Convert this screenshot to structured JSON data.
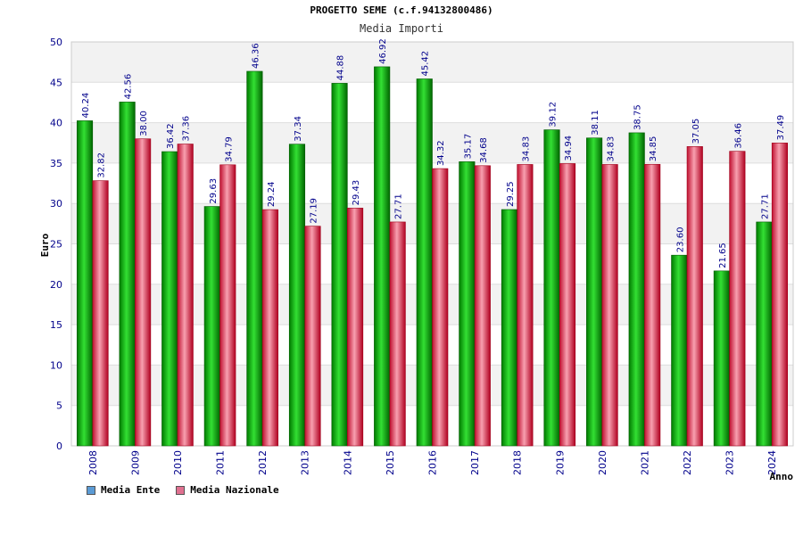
{
  "chart_data": {
    "type": "bar",
    "title": "PROGETTO SEME (c.f.94132800486)",
    "subtitle": "Media Importi",
    "xlabel": "Anno",
    "ylabel": "Euro",
    "ylim": [
      0,
      50
    ],
    "yticks": [
      0,
      5,
      10,
      15,
      20,
      25,
      30,
      35,
      40,
      45,
      50
    ],
    "grid": true,
    "legend_placement": "bottom-left",
    "categories": [
      "2008",
      "2009",
      "2010",
      "2011",
      "2012",
      "2013",
      "2014",
      "2015",
      "2016",
      "2017",
      "2018",
      "2019",
      "2020",
      "2021",
      "2022",
      "2023",
      "2024"
    ],
    "series": [
      {
        "name": "Media Ente",
        "color": "#00b400",
        "legend_color": "#5b9bd5",
        "values": [
          40.24,
          42.56,
          36.42,
          29.63,
          46.36,
          37.34,
          44.88,
          46.92,
          45.42,
          35.17,
          29.25,
          39.12,
          38.11,
          38.75,
          23.6,
          21.65,
          27.71
        ],
        "labels": [
          "40.24",
          "42.56",
          "36.42",
          "29.63",
          "46.36",
          "37.34",
          "44.88",
          "46.92",
          "45.42",
          "35.17",
          "29.25",
          "39.12",
          "38.11",
          "38.75",
          "23.60",
          "21.65",
          "27.71"
        ]
      },
      {
        "name": "Media Nazionale",
        "color": "#e8304a",
        "legend_color": "#e07090",
        "values": [
          32.82,
          38.0,
          37.36,
          34.79,
          29.24,
          27.19,
          29.43,
          27.71,
          34.32,
          34.68,
          34.83,
          34.94,
          34.83,
          34.85,
          37.05,
          36.46,
          37.49
        ],
        "labels": [
          "32.82",
          "38.00",
          "37.36",
          "34.79",
          "29.24",
          "27.19",
          "29.43",
          "27.71",
          "34.32",
          "34.68",
          "34.83",
          "34.94",
          "34.83",
          "34.85",
          "37.05",
          "36.46",
          "37.49"
        ]
      }
    ]
  }
}
